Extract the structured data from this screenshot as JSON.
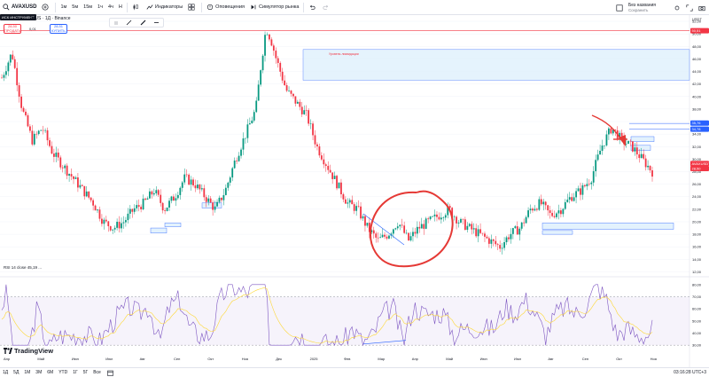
{
  "toolbar": {
    "symbol": "AVAXUSD",
    "timeframes": [
      "1м",
      "5м",
      "15м",
      "1ч",
      "4ч",
      "Н"
    ],
    "indicators_label": "Индикаторы",
    "alerts_label": "Оповещения",
    "simulator_label": "Симулятор рынка",
    "account_title": "Без названия",
    "account_sub": "Сохранить",
    "icons": [
      "search-icon",
      "add-icon",
      "candles-icon",
      "indicators-icon",
      "templates-icon",
      "alert-icon",
      "replay-icon",
      "undo-icon",
      "redo-icon",
      "fullscreen-icon",
      "camera-icon"
    ]
  },
  "overlay": {
    "tooltip": "ИСК ИНСТРУМЕНТ",
    "legend": "urUS · 1Д · Binance",
    "sell_price": "28,50",
    "sell_label": "ПРОДАТЬ",
    "buy_price": "28,51",
    "buy_label": "КУПИТЬ",
    "spread": "0,01",
    "annotation": "Уровень ликвидации"
  },
  "rsi_legend": "RSI  14  close  45,19  ...",
  "brand": "TradingView",
  "chart_data": {
    "type": "candlestick",
    "currency": "USDT",
    "y_axis_labels": [
      "52,00",
      "50,00",
      "48,00",
      "46,00",
      "44,00",
      "42,00",
      "40,00",
      "38,00",
      "36,00",
      "34,00",
      "32,00",
      "30,00",
      "28,00",
      "26,00",
      "24,00",
      "22,00",
      "20,00",
      "18,00",
      "16,00",
      "14,00",
      "12,00"
    ],
    "ylim": [
      11.5,
      53
    ],
    "x_axis_labels": [
      "Апр",
      "Май",
      "Июн",
      "Июл",
      "Авг",
      "Сен",
      "Окт",
      "Ноя",
      "Дек",
      "2025",
      "Фев",
      "Мар",
      "Апр",
      "Май",
      "Июн",
      "Июл",
      "Авг",
      "Сен",
      "Окт",
      "Ноя"
    ],
    "close_path": [
      [
        0,
        43
      ],
      [
        2,
        47
      ],
      [
        4,
        38
      ],
      [
        6,
        33
      ],
      [
        8,
        35
      ],
      [
        10,
        31
      ],
      [
        12,
        29
      ],
      [
        14,
        27
      ],
      [
        16,
        25
      ],
      [
        18,
        23
      ],
      [
        20,
        20
      ],
      [
        22,
        19
      ],
      [
        24,
        20
      ],
      [
        26,
        22
      ],
      [
        28,
        23
      ],
      [
        30,
        25
      ],
      [
        32,
        22
      ],
      [
        34,
        24
      ],
      [
        36,
        27
      ],
      [
        38,
        26
      ],
      [
        40,
        24
      ],
      [
        42,
        22
      ],
      [
        44,
        25
      ],
      [
        46,
        30
      ],
      [
        48,
        34
      ],
      [
        50,
        38
      ],
      [
        51,
        45
      ],
      [
        52,
        51
      ],
      [
        53,
        49
      ],
      [
        54,
        46
      ],
      [
        56,
        41
      ],
      [
        58,
        39
      ],
      [
        60,
        37
      ],
      [
        62,
        32
      ],
      [
        64,
        29
      ],
      [
        66,
        26
      ],
      [
        68,
        23
      ],
      [
        70,
        22
      ],
      [
        72,
        19
      ],
      [
        74,
        17
      ],
      [
        76,
        18
      ],
      [
        78,
        20
      ],
      [
        80,
        17
      ],
      [
        82,
        19
      ],
      [
        84,
        20
      ],
      [
        86,
        21
      ],
      [
        88,
        22
      ],
      [
        90,
        20
      ],
      [
        92,
        19
      ],
      [
        94,
        18
      ],
      [
        96,
        17
      ],
      [
        98,
        16
      ],
      [
        100,
        18
      ],
      [
        102,
        19
      ],
      [
        104,
        22
      ],
      [
        106,
        23
      ],
      [
        108,
        21
      ],
      [
        110,
        22
      ],
      [
        112,
        24
      ],
      [
        114,
        25
      ],
      [
        116,
        27
      ],
      [
        118,
        32
      ],
      [
        120,
        35
      ],
      [
        122,
        33
      ],
      [
        124,
        32
      ],
      [
        126,
        30
      ],
      [
        128,
        28
      ]
    ],
    "price_labels": [
      {
        "value": "50,51",
        "color": "#f23645"
      },
      {
        "value": "35,76",
        "color": "#2962ff"
      },
      {
        "value": "34,78",
        "color": "#2962ff"
      },
      {
        "value": "28,50",
        "color": "#f23645"
      },
      {
        "value": "AVAXUSDT",
        "color": "#f23645"
      }
    ],
    "rsi_axis_labels": [
      "80,00",
      "70,00",
      "60,00",
      "50,00",
      "40,00",
      "30,00"
    ],
    "rsi_ylim": [
      25,
      85
    ],
    "rsi_bands": [
      30,
      70
    ]
  },
  "bottom": {
    "ranges": [
      "1Д",
      "5Д",
      "1М",
      "3М",
      "6М",
      "YTD",
      "1Г",
      "5Г",
      "Все"
    ],
    "clock": "03:16:28 UTC+3"
  },
  "colors": {
    "up": "#089981",
    "down": "#f23645",
    "rsi_line": "#7e57c2",
    "rsi_ma": "#fdd835",
    "zone_fill": "#e3f2fd",
    "zone_stroke": "#2962ff",
    "annotation_red": "#e53935"
  }
}
